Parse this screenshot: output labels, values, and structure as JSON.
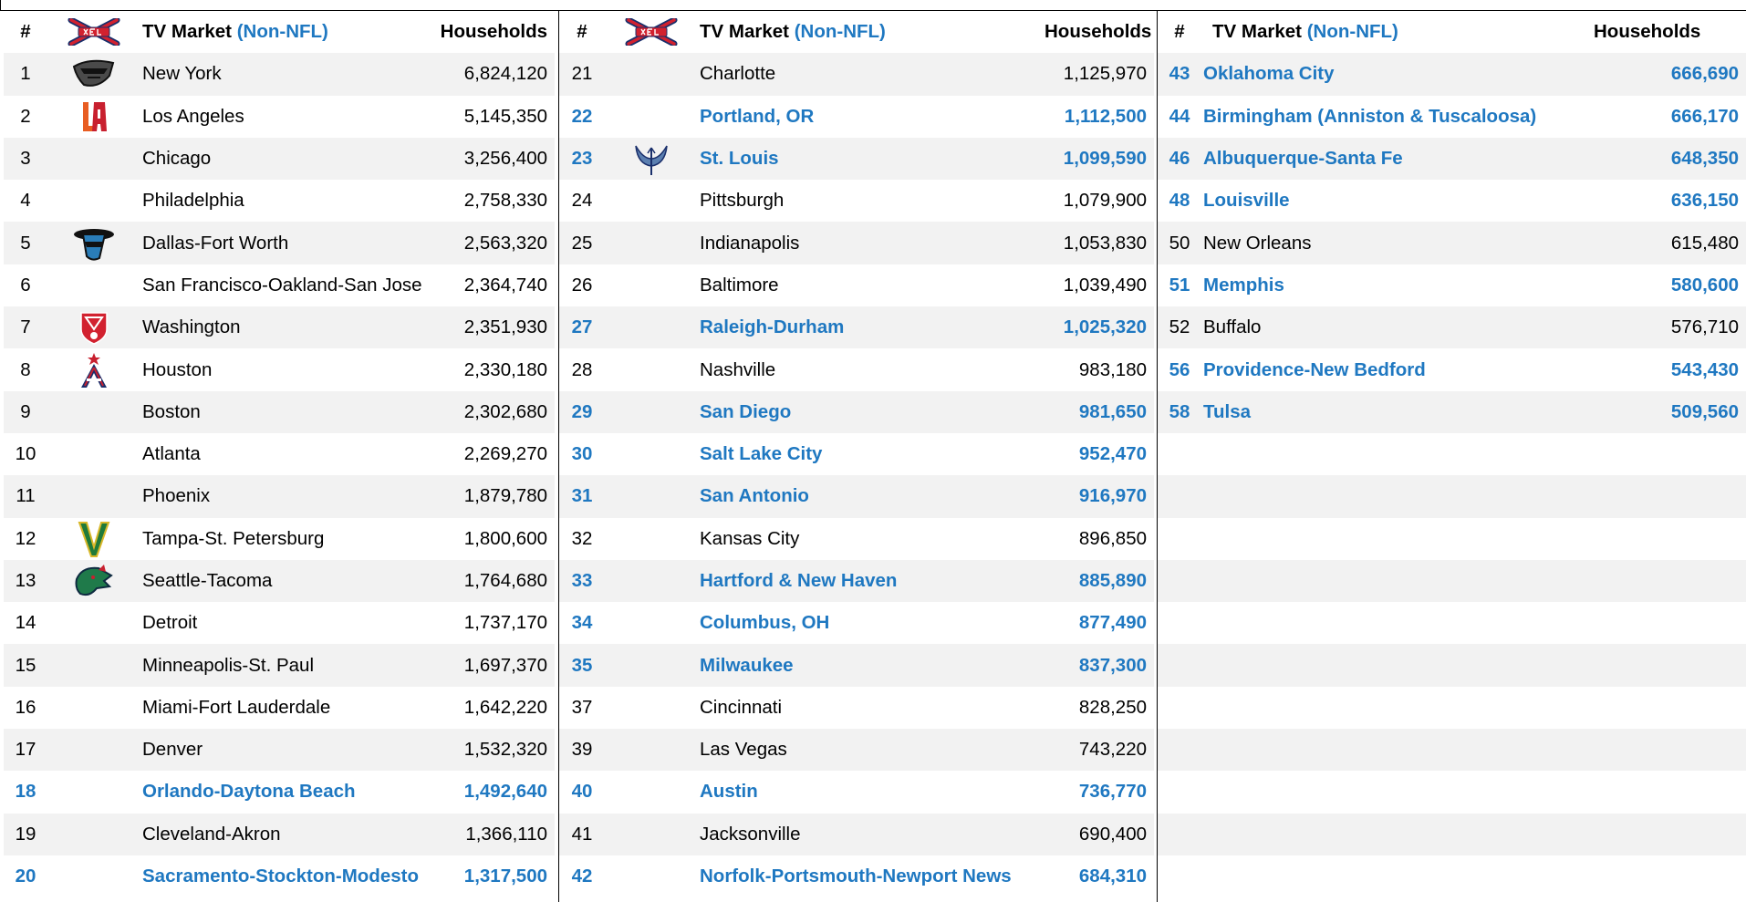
{
  "headers": {
    "rank": "#",
    "market": "TV Market",
    "market_suffix": "(Non-NFL)",
    "households": "Households"
  },
  "colors": {
    "highlight": "#1f78c1",
    "stripe": "#f2f2f2",
    "xfl_red": "#d2212f"
  },
  "col1": [
    {
      "rank": "1",
      "market": "New York",
      "households": "6,824,120",
      "hl": false,
      "logo": "new-york-guardians-logo"
    },
    {
      "rank": "2",
      "market": "Los Angeles",
      "households": "5,145,350",
      "hl": false,
      "logo": "la-wildcats-logo"
    },
    {
      "rank": "3",
      "market": "Chicago",
      "households": "3,256,400",
      "hl": false,
      "logo": ""
    },
    {
      "rank": "4",
      "market": "Philadelphia",
      "households": "2,758,330",
      "hl": false,
      "logo": ""
    },
    {
      "rank": "5",
      "market": "Dallas-Fort Worth",
      "households": "2,563,320",
      "hl": false,
      "logo": "dallas-renegades-logo"
    },
    {
      "rank": "6",
      "market": "San Francisco-Oakland-San Jose",
      "households": "2,364,740",
      "hl": false,
      "logo": ""
    },
    {
      "rank": "7",
      "market": "Washington",
      "households": "2,351,930",
      "hl": false,
      "logo": "dc-defenders-logo"
    },
    {
      "rank": "8",
      "market": "Houston",
      "households": "2,330,180",
      "hl": false,
      "logo": "houston-roughnecks-logo"
    },
    {
      "rank": "9",
      "market": "Boston",
      "households": "2,302,680",
      "hl": false,
      "logo": ""
    },
    {
      "rank": "10",
      "market": "Atlanta",
      "households": "2,269,270",
      "hl": false,
      "logo": ""
    },
    {
      "rank": "11",
      "market": "Phoenix",
      "households": "1,879,780",
      "hl": false,
      "logo": ""
    },
    {
      "rank": "12",
      "market": "Tampa-St. Petersburg",
      "households": "1,800,600",
      "hl": false,
      "logo": "tampa-bay-vipers-logo"
    },
    {
      "rank": "13",
      "market": "Seattle-Tacoma",
      "households": "1,764,680",
      "hl": false,
      "logo": "seattle-dragons-logo"
    },
    {
      "rank": "14",
      "market": "Detroit",
      "households": "1,737,170",
      "hl": false,
      "logo": ""
    },
    {
      "rank": "15",
      "market": "Minneapolis-St. Paul",
      "households": "1,697,370",
      "hl": false,
      "logo": ""
    },
    {
      "rank": "16",
      "market": "Miami-Fort Lauderdale",
      "households": "1,642,220",
      "hl": false,
      "logo": ""
    },
    {
      "rank": "17",
      "market": "Denver",
      "households": "1,532,320",
      "hl": false,
      "logo": ""
    },
    {
      "rank": "18",
      "market": "Orlando-Daytona Beach",
      "households": "1,492,640",
      "hl": true,
      "logo": ""
    },
    {
      "rank": "19",
      "market": "Cleveland-Akron",
      "households": "1,366,110",
      "hl": false,
      "logo": ""
    },
    {
      "rank": "20",
      "market": "Sacramento-Stockton-Modesto",
      "households": "1,317,500",
      "hl": true,
      "logo": ""
    }
  ],
  "col2": [
    {
      "rank": "21",
      "market": "Charlotte",
      "households": "1,125,970",
      "hl": false,
      "logo": ""
    },
    {
      "rank": "22",
      "market": "Portland, OR",
      "households": "1,112,500",
      "hl": true,
      "logo": ""
    },
    {
      "rank": "23",
      "market": "St. Louis",
      "households": "1,099,590",
      "hl": true,
      "logo": "st-louis-battlehawks-logo"
    },
    {
      "rank": "24",
      "market": "Pittsburgh",
      "households": "1,079,900",
      "hl": false,
      "logo": ""
    },
    {
      "rank": "25",
      "market": "Indianapolis",
      "households": "1,053,830",
      "hl": false,
      "logo": ""
    },
    {
      "rank": "26",
      "market": "Baltimore",
      "households": "1,039,490",
      "hl": false,
      "logo": ""
    },
    {
      "rank": "27",
      "market": "Raleigh-Durham",
      "households": "1,025,320",
      "hl": true,
      "logo": ""
    },
    {
      "rank": "28",
      "market": "Nashville",
      "households": "983,180",
      "hl": false,
      "logo": ""
    },
    {
      "rank": "29",
      "market": "San Diego",
      "households": "981,650",
      "hl": true,
      "logo": ""
    },
    {
      "rank": "30",
      "market": "Salt Lake City",
      "households": "952,470",
      "hl": true,
      "logo": ""
    },
    {
      "rank": "31",
      "market": "San Antonio",
      "households": "916,970",
      "hl": true,
      "logo": ""
    },
    {
      "rank": "32",
      "market": "Kansas City",
      "households": "896,850",
      "hl": false,
      "logo": ""
    },
    {
      "rank": "33",
      "market": "Hartford & New Haven",
      "households": "885,890",
      "hl": true,
      "logo": ""
    },
    {
      "rank": "34",
      "market": "Columbus, OH",
      "households": "877,490",
      "hl": true,
      "logo": ""
    },
    {
      "rank": "35",
      "market": "Milwaukee",
      "households": "837,300",
      "hl": true,
      "logo": ""
    },
    {
      "rank": "37",
      "market": "Cincinnati",
      "households": "828,250",
      "hl": false,
      "logo": ""
    },
    {
      "rank": "39",
      "market": "Las Vegas",
      "households": "743,220",
      "hl": false,
      "logo": ""
    },
    {
      "rank": "40",
      "market": "Austin",
      "households": "736,770",
      "hl": true,
      "logo": ""
    },
    {
      "rank": "41",
      "market": "Jacksonville",
      "households": "690,400",
      "hl": false,
      "logo": ""
    },
    {
      "rank": "42",
      "market": "Norfolk-Portsmouth-Newport News",
      "households": "684,310",
      "hl": true,
      "logo": ""
    }
  ],
  "col3": [
    {
      "rank": "43",
      "market": "Oklahoma City",
      "households": "666,690",
      "hl": true
    },
    {
      "rank": "44",
      "market": "Birmingham (Anniston & Tuscaloosa)",
      "households": "666,170",
      "hl": true
    },
    {
      "rank": "46",
      "market": "Albuquerque-Santa Fe",
      "households": "648,350",
      "hl": true
    },
    {
      "rank": "48",
      "market": "Louisville",
      "households": "636,150",
      "hl": true
    },
    {
      "rank": "50",
      "market": "New Orleans",
      "households": "615,480",
      "hl": false
    },
    {
      "rank": "51",
      "market": "Memphis",
      "households": "580,600",
      "hl": true
    },
    {
      "rank": "52",
      "market": "Buffalo",
      "households": "576,710",
      "hl": false
    },
    {
      "rank": "56",
      "market": "Providence-New Bedford",
      "households": "543,430",
      "hl": true
    },
    {
      "rank": "58",
      "market": "Tulsa",
      "households": "509,560",
      "hl": true
    },
    {
      "rank": "",
      "market": "",
      "households": "",
      "hl": false
    },
    {
      "rank": "",
      "market": "",
      "households": "",
      "hl": false
    },
    {
      "rank": "",
      "market": "",
      "households": "",
      "hl": false
    },
    {
      "rank": "",
      "market": "",
      "households": "",
      "hl": false
    },
    {
      "rank": "",
      "market": "",
      "households": "",
      "hl": false
    },
    {
      "rank": "",
      "market": "",
      "households": "",
      "hl": false
    },
    {
      "rank": "",
      "market": "",
      "households": "",
      "hl": false
    },
    {
      "rank": "",
      "market": "",
      "households": "",
      "hl": false
    },
    {
      "rank": "",
      "market": "",
      "households": "",
      "hl": false
    },
    {
      "rank": "",
      "market": "",
      "households": "",
      "hl": false
    },
    {
      "rank": "",
      "market": "",
      "households": "",
      "hl": false
    }
  ]
}
